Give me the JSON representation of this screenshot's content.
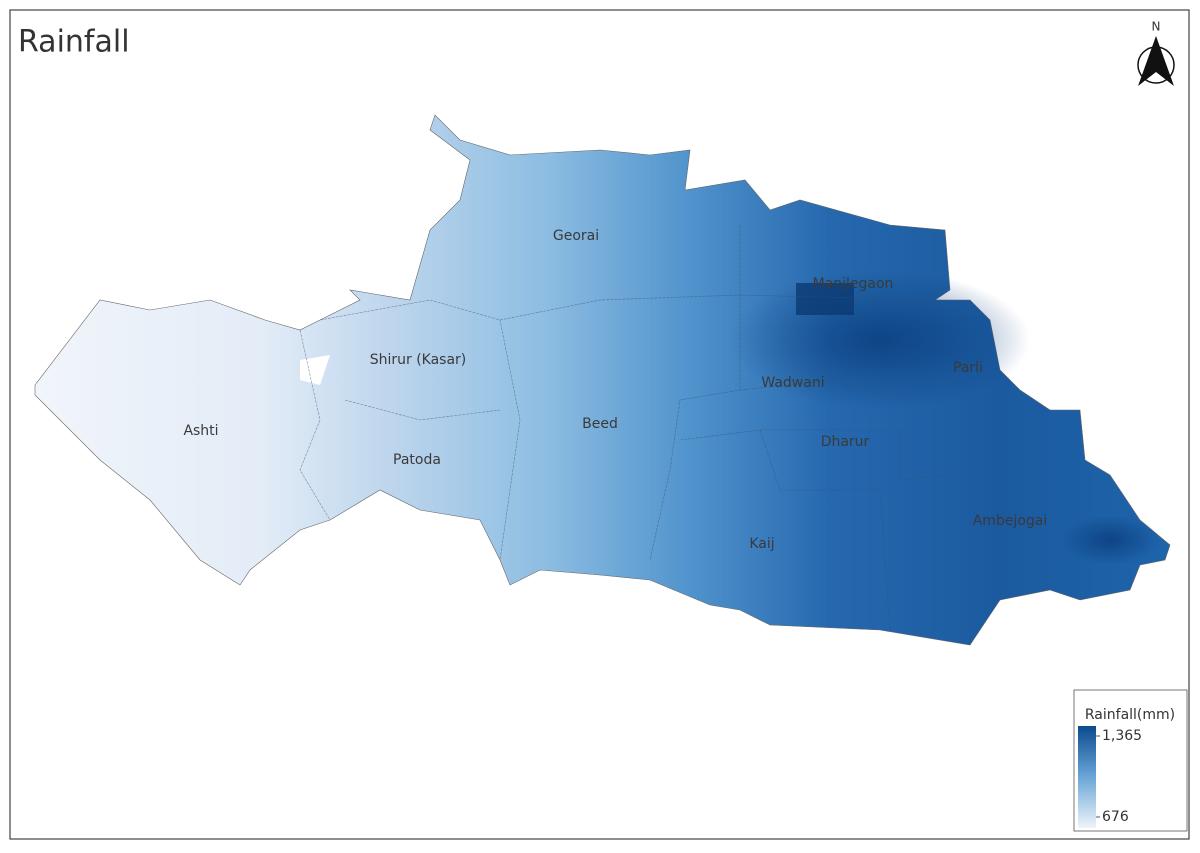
{
  "header": {
    "title": "Rainfall",
    "north": "N"
  },
  "districts": [
    "Georai",
    "Manjlegaon",
    "Shirur (Kasar)",
    "Wadwani",
    "Parli",
    "Ashti",
    "Beed",
    "Dharur",
    "Patoda",
    "Ambejogai",
    "Kaij"
  ],
  "legend": {
    "title": "Rainfall(mm)",
    "max": {
      "value": 1365,
      "label": "1,365"
    },
    "min": 676
  }
}
